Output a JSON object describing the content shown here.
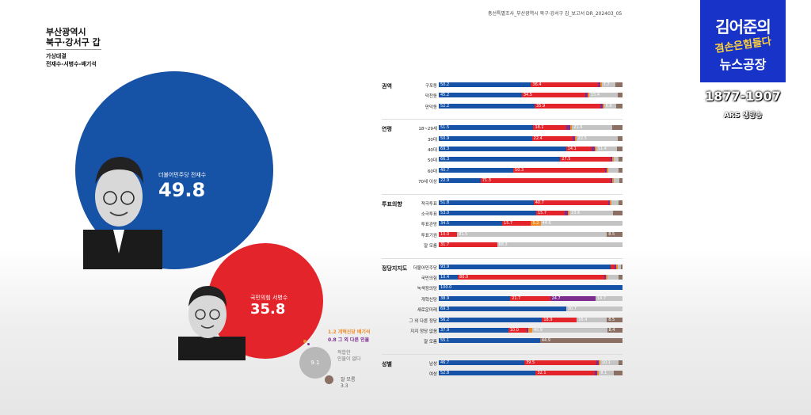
{
  "report_header": "총선특별조사_부산광역시 북구·강서구 갑_보고서   DR_202403_05",
  "region": {
    "line1": "부산광역시",
    "line2": "북구·강서구 갑"
  },
  "matchup": {
    "line1": "가상대결",
    "line2": "전재수-서병수-배기석"
  },
  "candidates": {
    "blue": {
      "name": "더불어민주당 전재수",
      "value": "49.8"
    },
    "red": {
      "name": "국민의힘 서병수",
      "value": "35.8"
    },
    "other1": "1.2 개혁신당 배기석",
    "other2": "0.8 그 외 다른 인물",
    "undecided_value": "9.1",
    "undecided_label": "적합한\n인물이 없다",
    "dunno_label": "잘 모름",
    "dunno_value": "3.3"
  },
  "colors": {
    "blue": "#1652a6",
    "red": "#e3242b",
    "purple": "#7c2d8e",
    "orange": "#f08a24",
    "gray": "#c4c4c4",
    "brown": "#8a6f62"
  },
  "logo": {
    "line1": "김어준의",
    "line2": "겸손은힘들다",
    "line3": "뉴스공장",
    "tel": "1877-1907",
    "sub": "ARS 생방송"
  },
  "chart_data": {
    "type": "bar",
    "orientation": "horizontal-stacked",
    "series": [
      {
        "name": "더불어민주당 전재수",
        "color": "#1652a6"
      },
      {
        "name": "국민의힘 서병수",
        "color": "#e3242b"
      },
      {
        "name": "개혁신당 배기석",
        "color": "#7c2d8e"
      },
      {
        "name": "그 외 다른 인물",
        "color": "#f08a24"
      },
      {
        "name": "적합한 인물이 없다",
        "color": "#c4c4c4"
      },
      {
        "name": "잘 모름",
        "color": "#8a6f62"
      }
    ],
    "groups": [
      {
        "name": "권역",
        "rows": [
          {
            "label": "구포동",
            "values": [
              50.2,
              36.4,
              1.2,
              0.8,
              7.7,
              3.7
            ],
            "labels": [
              "50.2",
              "36.4",
              "",
              "",
              "7.7",
              ""
            ]
          },
          {
            "label": "덕천동",
            "values": [
              45.2,
              34.5,
              1.2,
              1.0,
              15.4,
              2.7
            ],
            "labels": [
              "45.2",
              "34.5",
              "",
              "",
              "15.4",
              ""
            ]
          },
          {
            "label": "만덕동",
            "values": [
              52.2,
              35.9,
              1.0,
              0.8,
              6.8,
              3.3
            ],
            "labels": [
              "52.2",
              "35.9",
              "",
              "",
              "6.8",
              ""
            ]
          }
        ]
      },
      {
        "name": "연령",
        "rows": [
          {
            "label": "18~29세",
            "values": [
              51.5,
              18.1,
              2.0,
              1.0,
              21.6,
              5.8
            ],
            "labels": [
              "51.5",
              "18.1",
              "",
              "",
              "21.6",
              ""
            ]
          },
          {
            "label": "30대",
            "values": [
              50.9,
              22.4,
              1.0,
              0.5,
              22.5,
              2.7
            ],
            "labels": [
              "50.9",
              "22.4",
              "",
              "",
              "22.5",
              ""
            ]
          },
          {
            "label": "40대",
            "values": [
              69.3,
              14.1,
              1.5,
              0.8,
              11.4,
              2.9
            ],
            "labels": [
              "69.3",
              "14.1",
              "",
              "",
              "11.4",
              ""
            ]
          },
          {
            "label": "50대",
            "values": [
              66.3,
              27.5,
              1.0,
              0.5,
              2.7,
              2.0
            ],
            "labels": [
              "66.3",
              "27.5",
              "",
              "",
              "",
              ""
            ]
          },
          {
            "label": "60대",
            "values": [
              40.7,
              50.3,
              0.8,
              0.5,
              5.7,
              2.0
            ],
            "labels": [
              "40.7",
              "50.3",
              "",
              "",
              "",
              ""
            ]
          },
          {
            "label": "70세 이상",
            "values": [
              22.9,
              71.3,
              0.7,
              0.5,
              3.0,
              1.6
            ],
            "labels": [
              "22.9",
              "71.3",
              "",
              "",
              "",
              ""
            ]
          }
        ]
      },
      {
        "name": "투표의향",
        "rows": [
          {
            "label": "적극투표",
            "values": [
              51.8,
              40.7,
              1.0,
              0.5,
              4.0,
              2.0
            ],
            "labels": [
              "51.8",
              "40.7",
              "",
              "",
              "",
              ""
            ]
          },
          {
            "label": "소극투표",
            "values": [
              53.0,
              15.7,
              1.5,
              1.0,
              23.6,
              5.2
            ],
            "labels": [
              "53.0",
              "15.7",
              "",
              "",
              "23.6",
              ""
            ]
          },
          {
            "label": "투표관망",
            "values": [
              34.5,
              15.7,
              0.0,
              5.2,
              44.6,
              0.0
            ],
            "labels": [
              "34.5",
              "15.7",
              "",
              "5.2",
              "44.6",
              ""
            ]
          },
          {
            "label": "투표기권",
            "values": [
              0.0,
              10.0,
              0.0,
              0.0,
              81.5,
              8.5
            ],
            "labels": [
              "",
              "10.0",
              "",
              "",
              "81.5",
              "8.5"
            ]
          },
          {
            "label": "잘 모름",
            "values": [
              0.0,
              31.7,
              0.0,
              0.0,
              68.3,
              0.0
            ],
            "labels": [
              "",
              "31.7",
              "",
              "",
              "68.3",
              ""
            ]
          }
        ]
      },
      {
        "name": "정당지지도",
        "rows": [
          {
            "label": "더불어민주당",
            "values": [
              93.9,
              2.0,
              1.0,
              0.5,
              1.6,
              1.0
            ],
            "labels": [
              "93.9",
              "",
              "",
              "",
              "",
              ""
            ]
          },
          {
            "label": "국민의힘",
            "values": [
              10.4,
              80.0,
              1.0,
              0.5,
              6.0,
              2.1
            ],
            "labels": [
              "10.4",
              "80.0",
              "",
              "",
              "",
              ""
            ]
          },
          {
            "label": "녹색정의당",
            "values": [
              100.0,
              0,
              0,
              0,
              0,
              0
            ],
            "labels": [
              "100.0",
              "",
              "",
              "",
              "",
              ""
            ]
          },
          {
            "label": "개혁신당",
            "values": [
              38.9,
              21.7,
              24.7,
              0.0,
              14.7,
              0.0
            ],
            "labels": [
              "38.9",
              "21.7",
              "24.7",
              "",
              "14.7",
              ""
            ]
          },
          {
            "label": "새로운미래",
            "values": [
              69.3,
              0.0,
              0.0,
              0.0,
              30.7,
              0.0
            ],
            "labels": [
              "69.3",
              "",
              "",
              "",
              "30.7",
              ""
            ]
          },
          {
            "label": "그 외 다른 정당",
            "values": [
              56.2,
              18.9,
              0.0,
              0.0,
              16.4,
              8.5
            ],
            "labels": [
              "56.2",
              "18.9",
              "",
              "",
              "16.4",
              "8.5"
            ]
          },
          {
            "label": "지지 정당 없음",
            "values": [
              37.9,
              10.0,
              1.0,
              2.0,
              40.9,
              8.4
            ],
            "labels": [
              "37.9",
              "10.0",
              "",
              "",
              "40.9",
              "8.4"
            ]
          },
          {
            "label": "잘 모름",
            "values": [
              55.1,
              0.0,
              0.0,
              0.0,
              0.0,
              44.9
            ],
            "labels": [
              "55.1",
              "",
              "",
              "",
              "",
              "44.9"
            ]
          }
        ]
      },
      {
        "name": "성별",
        "rows": [
          {
            "label": "남성",
            "values": [
              46.7,
              39.5,
              1.0,
              0.6,
              10.1,
              2.1
            ],
            "labels": [
              "46.7",
              "39.5",
              "",
              "",
              "10.1",
              ""
            ]
          },
          {
            "label": "여성",
            "values": [
              52.8,
              32.1,
              1.3,
              1.0,
              8.1,
              4.7
            ],
            "labels": [
              "52.8",
              "32.1",
              "",
              "",
              "8.1",
              ""
            ]
          }
        ]
      }
    ]
  }
}
